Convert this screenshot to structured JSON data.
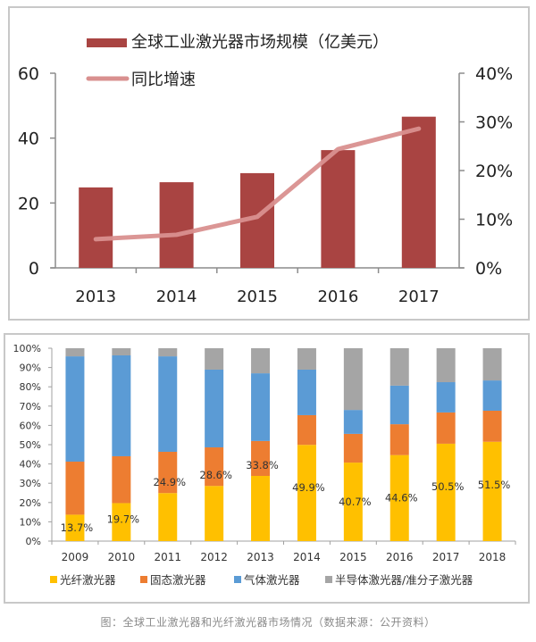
{
  "chart_data": [
    {
      "type": "bar",
      "title": "",
      "categories": [
        "2013",
        "2014",
        "2015",
        "2016",
        "2017"
      ],
      "series": [
        {
          "name": "全球工业激光器市场规模（亿美元）",
          "type": "bar",
          "axis": "left",
          "color": "#a94442",
          "values": [
            24.8,
            26.4,
            29.2,
            36.3,
            46.6
          ]
        },
        {
          "name": "同比增速",
          "type": "line",
          "axis": "right",
          "color": "#d9908f",
          "values": [
            5.9,
            6.8,
            10.5,
            24.4,
            28.6
          ]
        }
      ],
      "y_left": {
        "range": [
          0,
          60
        ],
        "ticks": [
          "0",
          "20",
          "40",
          "60"
        ],
        "tick_values": [
          0,
          20,
          40,
          60
        ]
      },
      "y_right": {
        "range": [
          0,
          40
        ],
        "ticks": [
          "0%",
          "10%",
          "20%",
          "30%",
          "40%"
        ],
        "tick_values": [
          0,
          10,
          20,
          30,
          40
        ]
      },
      "legend": {
        "position": "top-left",
        "items": [
          "全球工业激光器市场规模（亿美元）",
          "同比增速"
        ]
      },
      "grid": false
    },
    {
      "type": "bar",
      "stacked": true,
      "percent": true,
      "categories": [
        "2009",
        "2010",
        "2011",
        "2012",
        "2013",
        "2014",
        "2015",
        "2016",
        "2017",
        "2018"
      ],
      "series": [
        {
          "name": "光纤激光器",
          "color": "#ffc000",
          "values": [
            13.7,
            19.7,
            24.9,
            28.6,
            33.8,
            49.9,
            40.7,
            44.6,
            50.5,
            51.5
          ]
        },
        {
          "name": "固态激光器",
          "color": "#ed7d31",
          "values": [
            27.5,
            24.3,
            21.4,
            20.0,
            18.1,
            15.4,
            14.9,
            16.0,
            16.2,
            16.1
          ]
        },
        {
          "name": "气体激光器",
          "color": "#5b9bd5",
          "values": [
            54.6,
            52.3,
            49.5,
            40.3,
            35.1,
            23.6,
            12.4,
            20.0,
            15.7,
            15.7
          ]
        },
        {
          "name": "半导体激光器/准分子激光器",
          "color": "#a5a5a5",
          "values": [
            4.2,
            3.7,
            4.2,
            11.1,
            13.0,
            11.1,
            32.0,
            19.4,
            17.6,
            16.7
          ]
        }
      ],
      "data_labels": [
        "13.7%",
        "19.7%",
        "24.9%",
        "28.6%",
        "33.8%",
        "49.9%",
        "40.7%",
        "44.6%",
        "50.5%",
        "51.5%"
      ],
      "y": {
        "range": [
          0,
          100
        ],
        "ticks": [
          "0%",
          "10%",
          "20%",
          "30%",
          "40%",
          "50%",
          "60%",
          "70%",
          "80%",
          "90%",
          "100%"
        ]
      },
      "legend": {
        "position": "bottom",
        "items": [
          "光纤激光器",
          "固态激光器",
          "气体激光器",
          "半导体激光器/准分子激光器"
        ]
      },
      "grid": false
    }
  ],
  "caption": "图：全球工业激光器和光纤激光器市场情况（数据来源：公开资料）"
}
